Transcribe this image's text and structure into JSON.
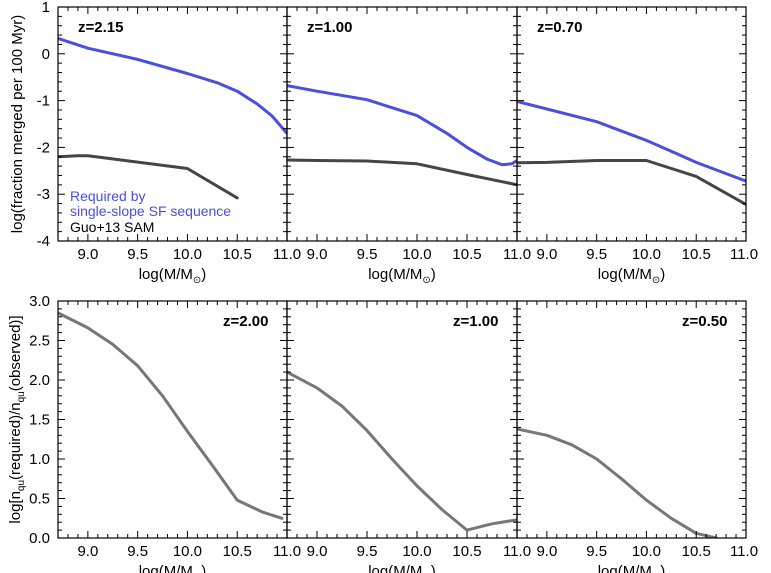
{
  "colors": {
    "required": "#4a4fdc",
    "guo": "#454545",
    "bottom_line": "#777777"
  },
  "chart_data": [
    {
      "type": "line",
      "panel": "top-1",
      "panel_label": "z=2.15",
      "xlim": [
        8.7,
        11.0
      ],
      "ylim": [
        -4,
        1
      ],
      "ylabel": "log(fraction merged per 100 Myr)",
      "xlabel": "log(M/M⊙)",
      "series": [
        {
          "name": "Required by single-slope SF sequence",
          "color_key": "required",
          "x": [
            8.7,
            9.0,
            9.5,
            10.0,
            10.3,
            10.5,
            10.7,
            10.85,
            11.0
          ],
          "y": [
            0.33,
            0.12,
            -0.12,
            -0.42,
            -0.62,
            -0.8,
            -1.07,
            -1.33,
            -1.7
          ]
        },
        {
          "name": "Guo+13 SAM",
          "color_key": "guo",
          "x": [
            8.7,
            8.9,
            9.0,
            10.0,
            10.5
          ],
          "y": [
            -2.2,
            -2.18,
            -2.18,
            -2.45,
            -3.08
          ]
        }
      ]
    },
    {
      "type": "line",
      "panel": "top-2",
      "panel_label": "z=1.00",
      "xlim": [
        8.7,
        11.0
      ],
      "ylim": [
        -4,
        1
      ],
      "xlabel": "log(M/M⊙)",
      "series": [
        {
          "color_key": "required",
          "x": [
            8.7,
            9.0,
            9.5,
            10.0,
            10.3,
            10.5,
            10.7,
            10.85,
            10.95,
            11.0
          ],
          "y": [
            -0.68,
            -0.8,
            -0.98,
            -1.32,
            -1.7,
            -2.0,
            -2.25,
            -2.37,
            -2.35,
            -2.28
          ]
        },
        {
          "color_key": "guo",
          "x": [
            8.7,
            9.0,
            9.5,
            10.0,
            10.5,
            11.0
          ],
          "y": [
            -2.27,
            -2.28,
            -2.29,
            -2.35,
            -2.58,
            -2.8
          ]
        }
      ]
    },
    {
      "type": "line",
      "panel": "top-3",
      "panel_label": "z=0.70",
      "xlim": [
        8.7,
        11.0
      ],
      "ylim": [
        -4,
        1
      ],
      "xlabel": "log(M/M⊙)",
      "series": [
        {
          "color_key": "required",
          "x": [
            8.7,
            9.0,
            9.5,
            10.0,
            10.3,
            10.5,
            10.8,
            11.0
          ],
          "y": [
            -1.02,
            -1.18,
            -1.45,
            -1.85,
            -2.13,
            -2.32,
            -2.56,
            -2.72
          ]
        },
        {
          "color_key": "guo",
          "x": [
            8.7,
            9.0,
            9.5,
            10.0,
            10.5,
            11.0
          ],
          "y": [
            -2.33,
            -2.32,
            -2.28,
            -2.28,
            -2.62,
            -3.22
          ]
        }
      ]
    },
    {
      "type": "line",
      "panel": "bottom-1",
      "panel_label": "z=2.00",
      "xlim": [
        8.7,
        11.0
      ],
      "ylim": [
        0.0,
        3.0
      ],
      "ylabel": "log[n_qu(required)/n_qu(observed)]",
      "xlabel": "log(M/M⊙)",
      "series": [
        {
          "color_key": "bottom_line",
          "x": [
            8.7,
            9.0,
            9.25,
            9.5,
            9.75,
            10.0,
            10.25,
            10.5,
            10.75,
            10.95
          ],
          "y": [
            2.85,
            2.66,
            2.45,
            2.18,
            1.8,
            1.35,
            0.92,
            0.48,
            0.33,
            0.25
          ]
        }
      ]
    },
    {
      "type": "line",
      "panel": "bottom-2",
      "panel_label": "z=1.00",
      "xlim": [
        8.7,
        11.0
      ],
      "ylim": [
        0.0,
        3.0
      ],
      "xlabel": "log(M/M⊙)",
      "series": [
        {
          "color_key": "bottom_line",
          "x": [
            8.7,
            9.0,
            9.25,
            9.5,
            9.75,
            10.0,
            10.25,
            10.5,
            10.75,
            11.0
          ],
          "y": [
            2.1,
            1.9,
            1.67,
            1.36,
            1.0,
            0.66,
            0.36,
            0.1,
            0.18,
            0.23
          ]
        }
      ]
    },
    {
      "type": "line",
      "panel": "bottom-3",
      "panel_label": "z=0.50",
      "xlim": [
        8.7,
        11.0
      ],
      "ylim": [
        0.0,
        3.0
      ],
      "xlabel": "log(M/M⊙)",
      "series": [
        {
          "color_key": "bottom_line",
          "x": [
            8.7,
            9.0,
            9.25,
            9.5,
            9.75,
            10.0,
            10.25,
            10.5,
            10.7
          ],
          "y": [
            1.38,
            1.3,
            1.18,
            1.0,
            0.75,
            0.48,
            0.25,
            0.06,
            0.0
          ]
        }
      ]
    }
  ],
  "axes": {
    "top_yticks": [
      "1",
      "0",
      "-1",
      "-2",
      "-3",
      "-4"
    ],
    "bottom_yticks": [
      "3.0",
      "2.5",
      "2.0",
      "1.5",
      "1.0",
      "0.5",
      "0.0"
    ],
    "xticks_first": [
      "9.0",
      "9.5",
      "10.0",
      "10.5"
    ],
    "xticks": [
      "11.0",
      "9.0",
      "9.5",
      "10.0",
      "10.5"
    ],
    "xticks_last": [
      "11.0",
      "9.0",
      "9.5",
      "10.0",
      "10.5",
      "11.0"
    ],
    "xlabel_prefix": "log(M/M",
    "xlabel_sub": "⊙",
    "xlabel_suffix": ")",
    "top_ylabel": "log(fraction merged per 100 Myr)",
    "bottom_ylabel_pre": "log[n",
    "bottom_ylabel_sub1": "qu",
    "bottom_ylabel_mid": "(required)/n",
    "bottom_ylabel_sub2": "qu",
    "bottom_ylabel_post": "(observed)]"
  },
  "legend": {
    "line1": "Required by",
    "line2": "single-slope SF sequence",
    "line3": "Guo+13 SAM"
  }
}
